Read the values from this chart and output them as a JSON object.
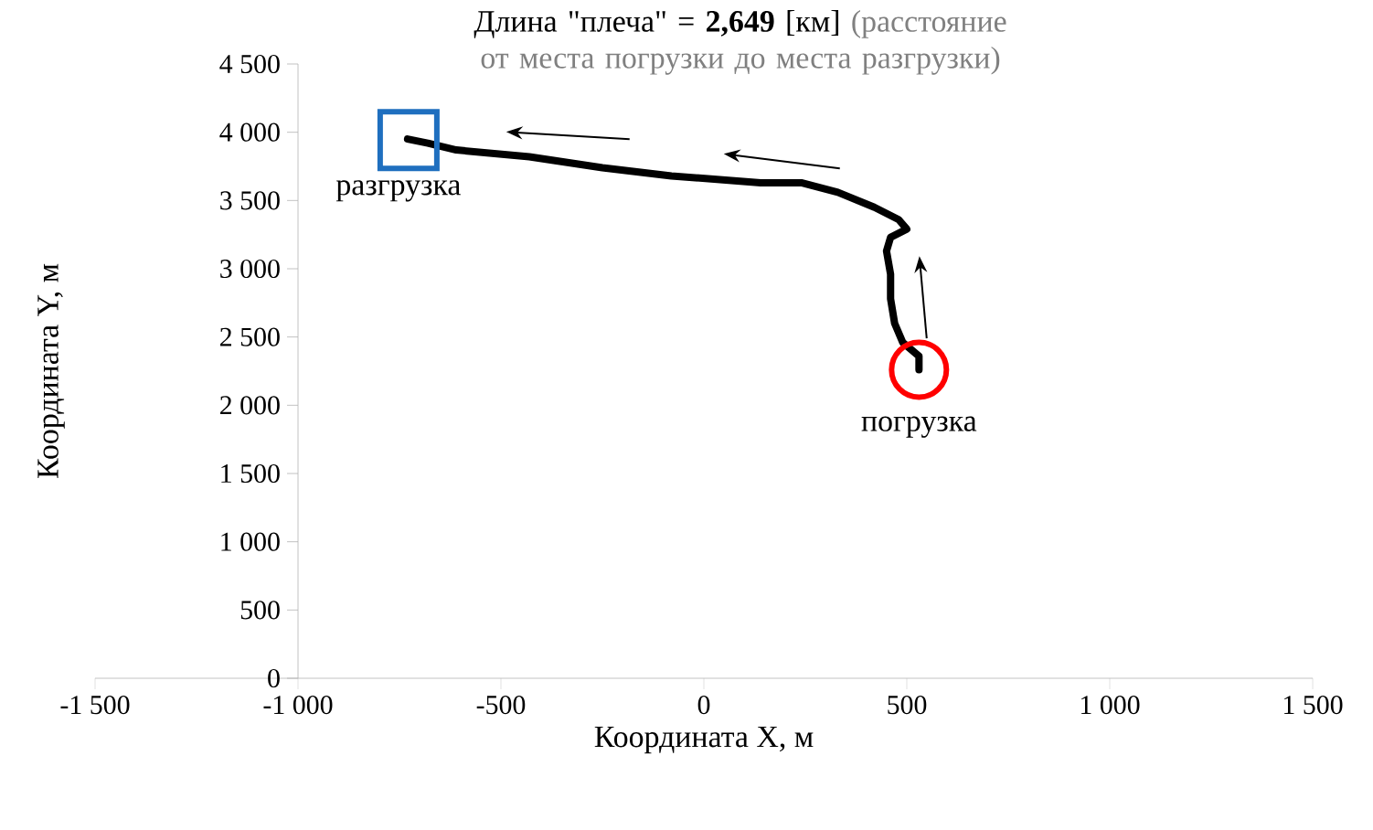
{
  "chart_data": {
    "type": "line",
    "title": "Длина \"плеча\" = **2,649** [км]",
    "subtitle": "(расстояние от места погрузки до места разгрузки)",
    "xlabel": "Координата X, м",
    "ylabel": "Координата Y, м",
    "xlim": [
      -1500,
      1500
    ],
    "ylim": [
      0,
      4500
    ],
    "xticks": [
      {
        "value": -1500,
        "label": "-1 500"
      },
      {
        "value": -1000,
        "label": "-1 000"
      },
      -500,
      0,
      500,
      {
        "value": 1000,
        "label": "1 000"
      },
      {
        "value": 1500,
        "label": "1 500"
      }
    ],
    "yticks": [
      0,
      500,
      {
        "value": 1000,
        "label": "1 000"
      },
      {
        "value": 1500,
        "label": "1 500"
      },
      {
        "value": 2000,
        "label": "2 000"
      },
      {
        "value": 2500,
        "label": "2 500"
      },
      {
        "value": 3000,
        "label": "3 000"
      },
      {
        "value": 3500,
        "label": "3 500"
      },
      {
        "value": 4000,
        "label": "4 000"
      },
      {
        "value": 4500,
        "label": "4 500"
      }
    ],
    "series": [
      {
        "color": "#000000",
        "x": [
          530,
          530,
          490,
          470,
          460,
          460,
          450,
          460,
          500,
          480,
          420,
          330,
          240,
          140,
          -80,
          -250,
          -430,
          -610,
          -680,
          -730
        ],
        "values": [
          2260,
          2360,
          2460,
          2600,
          2780,
          2960,
          3130,
          3230,
          3290,
          3360,
          3450,
          3560,
          3630,
          3630,
          3680,
          3740,
          3820,
          3870,
          3920,
          3950
        ]
      }
    ],
    "annotations": [
      {
        "text": "погрузка",
        "x": 530,
        "y": 2260
      },
      {
        "text": "разгрузка",
        "x": -730,
        "y": 3950
      }
    ],
    "grid": false,
    "marker": "none",
    "line_style": "solid"
  }
}
